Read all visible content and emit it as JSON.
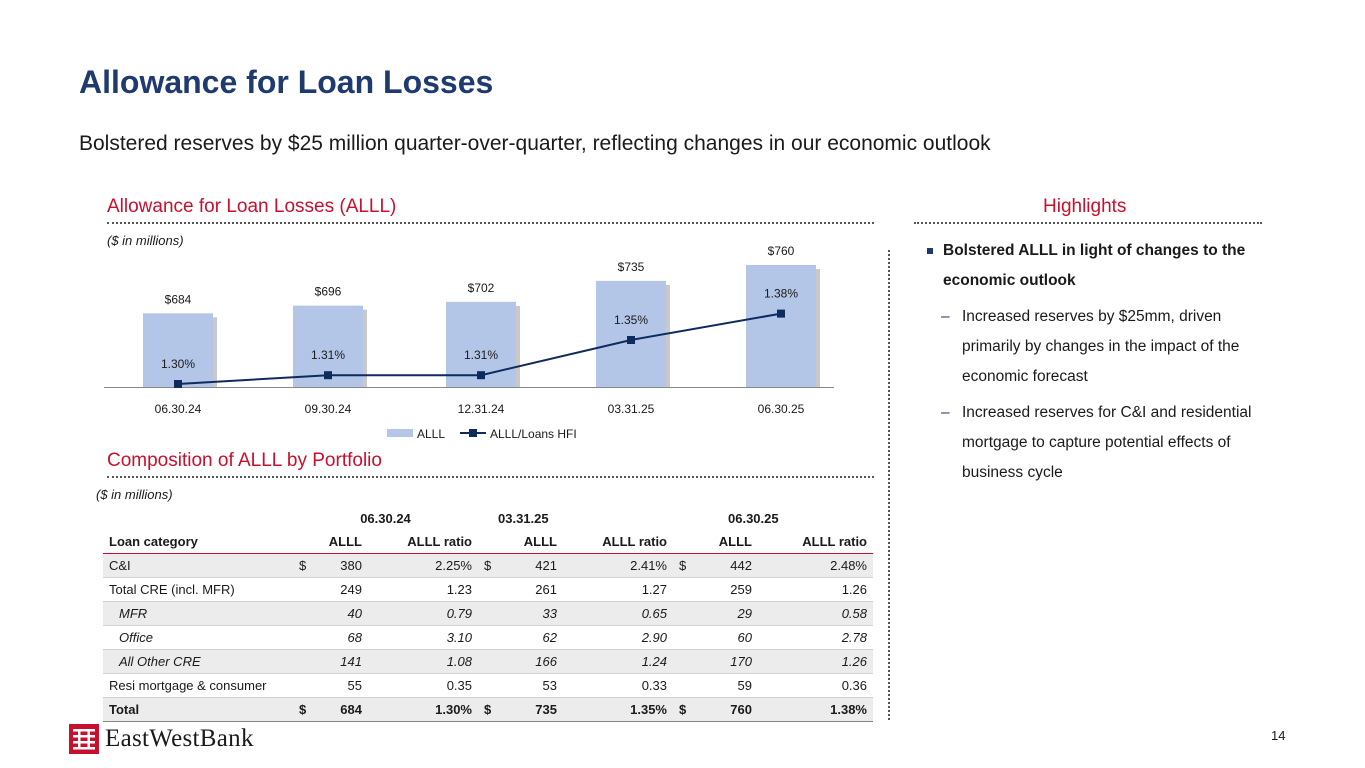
{
  "slide": {
    "title": "Allowance for Loan Losses",
    "subtitle": "Bolstered reserves by $25 million quarter-over-quarter, reflecting changes in our economic outlook",
    "page_number": "14",
    "logo_text": "EastWestBank"
  },
  "chart_section": {
    "heading": "Allowance for Loan Losses (ALLL)",
    "units": "($ in millions)"
  },
  "highlights": {
    "heading": "Highlights",
    "bullet": "Bolstered ALLL in light of changes to the economic outlook",
    "dash": "–",
    "sub": [
      "Increased reserves by $25mm, driven primarily by changes in the impact of the economic forecast",
      "Increased reserves for C&I and residential mortgage to capture potential effects of business cycle"
    ]
  },
  "chart_data": {
    "type": "bar",
    "categories": [
      "06.30.24",
      "09.30.24",
      "12.31.24",
      "03.31.25",
      "06.30.25"
    ],
    "series": [
      {
        "name": "ALLL",
        "type": "bar",
        "values": [
          684,
          696,
          702,
          735,
          760
        ],
        "labels": [
          "$684",
          "$696",
          "$702",
          "$735",
          "$760"
        ],
        "color": "#b4c6e7"
      },
      {
        "name": "ALLL/Loans HFI",
        "type": "line",
        "values": [
          1.3,
          1.31,
          1.31,
          1.35,
          1.38
        ],
        "labels": [
          "1.30%",
          "1.31%",
          "1.31%",
          "1.35%",
          "1.38%"
        ],
        "color": "#0f2a5e"
      }
    ],
    "legend": "bottom",
    "grid": false
  },
  "table_section": {
    "heading": "Composition of ALLL by Portfolio",
    "units": "($ in millions)",
    "periods": [
      "06.30.24",
      "03.31.25",
      "06.30.25"
    ],
    "headers": [
      "Loan category",
      "ALLL",
      "ALLL ratio",
      "ALLL",
      "ALLL ratio",
      "ALLL",
      "ALLL ratio"
    ],
    "currency": "$",
    "rows": [
      {
        "label": "C&I",
        "values": [
          "380",
          "2.25%",
          "421",
          "2.41%",
          "442",
          "2.48%"
        ],
        "style": "shade",
        "currency": true
      },
      {
        "label": "Total CRE (incl. MFR)",
        "values": [
          "249",
          "1.23",
          "261",
          "1.27",
          "259",
          "1.26"
        ],
        "style": "plain",
        "currency": false
      },
      {
        "label": "MFR",
        "values": [
          "40",
          "0.79",
          "33",
          "0.65",
          "29",
          "0.58"
        ],
        "style": "shade ital",
        "currency": false
      },
      {
        "label": "Office",
        "values": [
          "68",
          "3.10",
          "62",
          "2.90",
          "60",
          "2.78"
        ],
        "style": "plain ital",
        "currency": false
      },
      {
        "label": "All Other CRE",
        "values": [
          "141",
          "1.08",
          "166",
          "1.24",
          "170",
          "1.26"
        ],
        "style": "shade ital",
        "currency": false
      },
      {
        "label": "Resi mortgage & consumer",
        "values": [
          "55",
          "0.35",
          "53",
          "0.33",
          "59",
          "0.36"
        ],
        "style": "plain",
        "currency": false
      },
      {
        "label": "Total",
        "values": [
          "684",
          "1.30%",
          "735",
          "1.35%",
          "760",
          "1.38%"
        ],
        "style": "shade tot",
        "currency": true
      }
    ]
  },
  "colors": {
    "title": "#1f3a6e",
    "section_heading": "#c8102e",
    "bar": "#b4c6e7",
    "line": "#0f2a5e",
    "logo": "#c8102e"
  }
}
